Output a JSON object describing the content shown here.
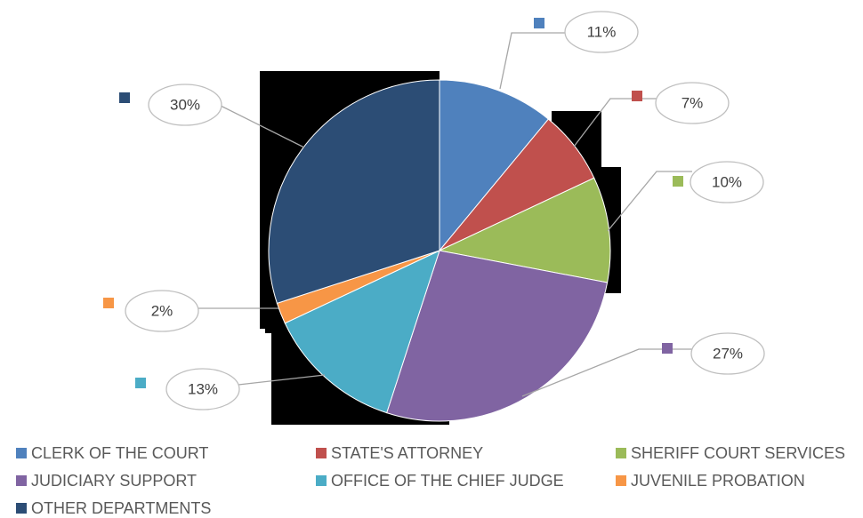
{
  "chart_data": {
    "type": "pie",
    "categories": [
      "CLERK OF THE COURT",
      "STATE'S ATTORNEY",
      "SHERIFF COURT SERVICES",
      "JUDICIARY SUPPORT",
      "OFFICE OF THE CHIEF JUDGE",
      "JUVENILE PROBATION",
      "OTHER DEPARTMENTS"
    ],
    "values": [
      11,
      7,
      10,
      27,
      13,
      2,
      30
    ],
    "value_labels": [
      "11%",
      "7%",
      "10%",
      "27%",
      "13%",
      "2%",
      "30%"
    ],
    "colors": [
      "#4f81bd",
      "#c0504d",
      "#9bbb59",
      "#8064a2",
      "#4bacc6",
      "#f79646",
      "#2c4d75"
    ],
    "legend": "bottom"
  }
}
